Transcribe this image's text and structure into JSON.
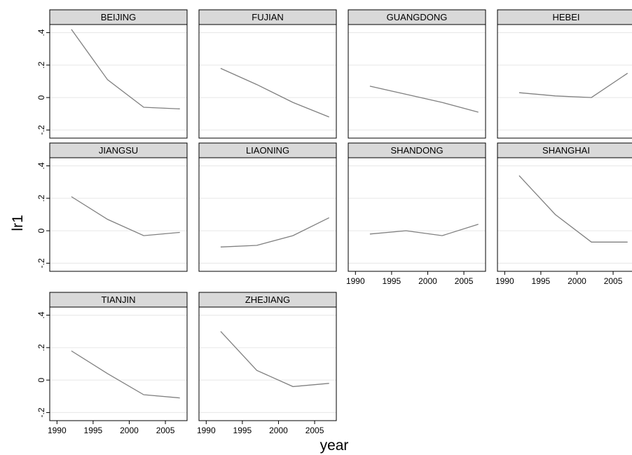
{
  "chart_data": {
    "type": "line",
    "layout": "small-multiples",
    "xlabel": "year",
    "ylabel": "lr1",
    "xlim": [
      1989,
      2008
    ],
    "ylim": [
      -0.25,
      0.45
    ],
    "x_ticks": [
      1990,
      1995,
      2000,
      2005
    ],
    "x_tick_labels": [
      "1990",
      "1995",
      "2000",
      "2005"
    ],
    "y_ticks": [
      -0.2,
      0,
      0.2,
      0.4
    ],
    "y_tick_labels": [
      "-.2",
      "0",
      ".2",
      ".4"
    ],
    "grid": true,
    "line_color": "#808080",
    "strip_color": "#d9d9d9",
    "x": [
      1992,
      1997,
      2002,
      2007
    ],
    "panels": [
      {
        "name": "BEIJING",
        "values": [
          0.42,
          0.11,
          -0.06,
          -0.07
        ]
      },
      {
        "name": "FUJIAN",
        "values": [
          0.18,
          0.08,
          -0.03,
          -0.12
        ]
      },
      {
        "name": "GUANGDONG",
        "values": [
          0.07,
          0.02,
          -0.03,
          -0.09
        ]
      },
      {
        "name": "HEBEI",
        "values": [
          0.03,
          0.01,
          0.0,
          0.15
        ]
      },
      {
        "name": "JIANGSU",
        "values": [
          0.21,
          0.07,
          -0.03,
          -0.01
        ]
      },
      {
        "name": "LIAONING",
        "values": [
          -0.1,
          -0.09,
          -0.03,
          0.08
        ]
      },
      {
        "name": "SHANDONG",
        "values": [
          -0.02,
          0.0,
          -0.03,
          0.04
        ]
      },
      {
        "name": "SHANGHAI",
        "values": [
          0.34,
          0.1,
          -0.07,
          -0.07
        ]
      },
      {
        "name": "TIANJIN",
        "values": [
          0.18,
          0.04,
          -0.09,
          -0.11
        ]
      },
      {
        "name": "ZHEJIANG",
        "values": [
          0.3,
          0.06,
          -0.04,
          -0.02
        ]
      }
    ]
  }
}
